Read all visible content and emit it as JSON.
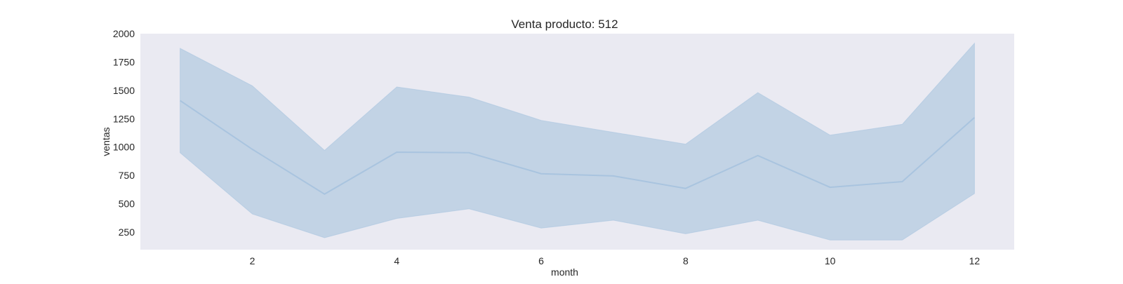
{
  "chart_data": {
    "type": "line",
    "title": "Venta producto: 512",
    "xlabel": "month",
    "ylabel": "ventas",
    "x": [
      1,
      2,
      3,
      4,
      5,
      6,
      7,
      8,
      9,
      10,
      11,
      12
    ],
    "series": [
      {
        "values": [
          1410,
          980,
          585,
          955,
          950,
          765,
          745,
          635,
          925,
          645,
          695,
          1260
        ],
        "lower": [
          950,
          410,
          200,
          370,
          455,
          285,
          355,
          235,
          355,
          180,
          180,
          590
        ],
        "upper": [
          1870,
          1540,
          970,
          1530,
          1440,
          1235,
          1130,
          1025,
          1480,
          1105,
          1200,
          1915
        ]
      }
    ],
    "xticks": [
      2,
      4,
      6,
      8,
      10,
      12
    ],
    "yticks": [
      250,
      500,
      750,
      1000,
      1250,
      1500,
      1750,
      2000
    ],
    "xlim": [
      0.45,
      12.55
    ],
    "ylim": [
      95,
      2000
    ],
    "grid": false,
    "colors": {
      "plot_background": "#eaeaf2",
      "line": "#a9c4df",
      "band": "#c2d3e5"
    }
  }
}
